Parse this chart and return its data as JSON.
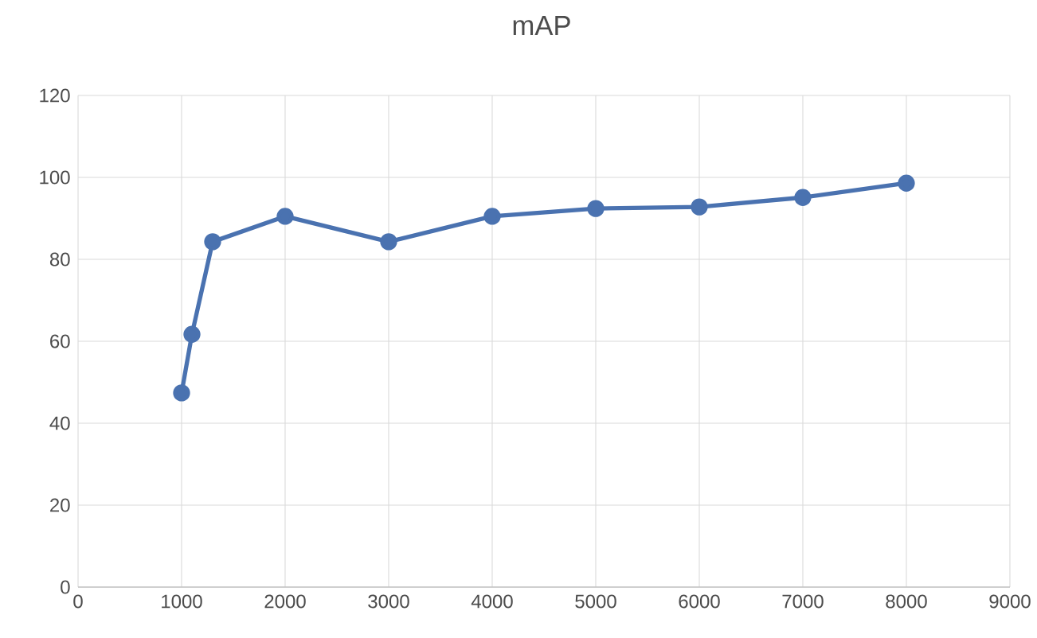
{
  "chart_data": {
    "type": "line",
    "title": "mAP",
    "x": [
      1000,
      1100,
      1300,
      2000,
      3000,
      4000,
      5000,
      6000,
      7000,
      8000
    ],
    "series": [
      {
        "color": "#4a72b0",
        "values": [
          47.4,
          61.7,
          84.3,
          90.5,
          84.3,
          90.5,
          92.4,
          92.8,
          95.1,
          98.6
        ]
      }
    ],
    "xlim": [
      0,
      9000
    ],
    "xticks": [
      0,
      1000,
      2000,
      3000,
      4000,
      5000,
      6000,
      7000,
      8000,
      9000
    ],
    "ylim": [
      0,
      120
    ],
    "yticks": [
      0,
      20,
      40,
      60,
      80,
      100,
      120
    ],
    "grid": true,
    "marker": "circle",
    "line_style": "solid"
  }
}
